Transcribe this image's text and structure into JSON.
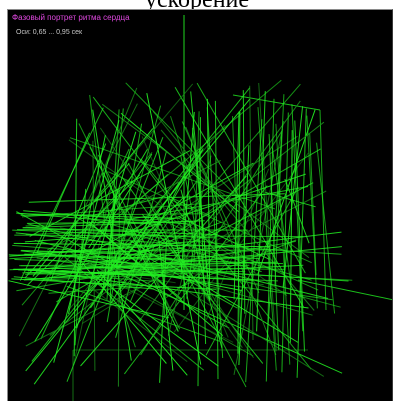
{
  "header": {
    "caption": "ускорение"
  },
  "plot": {
    "title": "Фазовый портрет ритма сердца",
    "axis_info": "Оси:  0,65 ... 0,95 сек"
  },
  "colors": {
    "panel_background": "#000000",
    "trace": "#22ee22",
    "trace_dim": "#1a8a1a",
    "title": "#e048e0",
    "axis_text": "#c8c8c8"
  }
}
